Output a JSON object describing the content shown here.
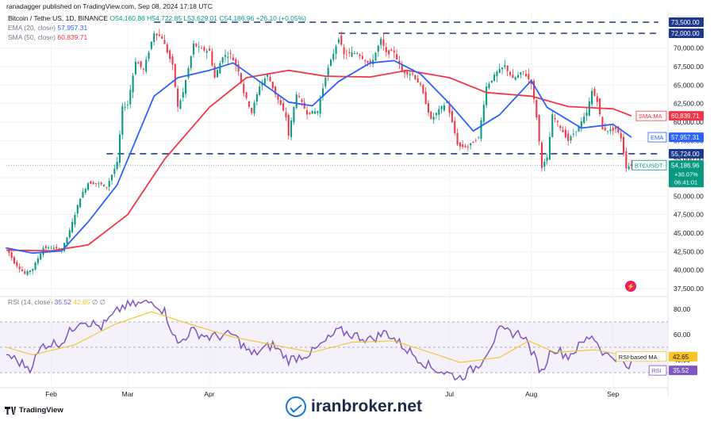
{
  "header": {
    "published": "ranadagger published on TradingView.com, Sep 08, 2024 17:18 UTC"
  },
  "legend": {
    "symbol": "Bitcoin / TetherUS, 1D, BINANCE",
    "ohlc": "O54,160.86 H54,722.85 L53,629.01 C54,186.96 +26.10 (+0.05%)",
    "ema_label": "EMA (20, close)",
    "ema_value": "57,957.31",
    "sma_label": "SMA (50, close)",
    "sma_value": "60,839.71",
    "rsi_label": "RSI (14, close)",
    "rsi_value": "35.52",
    "rsi_ma_value": "42.65",
    "rsi_extra": "∅ ∅"
  },
  "currency_label": "USDT",
  "branding": {
    "tv_logo": "TradingView",
    "watermark": "iranbroker.net"
  },
  "colors": {
    "up": "#089981",
    "down": "#f23645",
    "ema": "#2962ff",
    "sma": "#f23645",
    "rsi": "#7e57c2",
    "rsi_ma": "#f7c325",
    "level": "#1e3a8a",
    "bg_band": "#ede7f6"
  },
  "chart_data": [
    {
      "type": "candlestick",
      "x_range": [
        "2024-01-15",
        "2024-09-08"
      ],
      "ylim": [
        37500,
        73500
      ],
      "y_ticks": [
        "37,500.00",
        "40,000.00",
        "42,500.00",
        "45,000.00",
        "47,500.00",
        "50,000.00",
        "52,500.00",
        "55,000.00",
        "57,500.00",
        "60,000.00",
        "62,500.00",
        "65,000.00",
        "67,500.00",
        "70,000.00"
      ],
      "x_ticks": [
        {
          "label": "Feb",
          "date": "2024-02-01"
        },
        {
          "label": "Mar",
          "date": "2024-03-01"
        },
        {
          "label": "Apr",
          "date": "2024-04-01"
        },
        {
          "label": "Jul",
          "date": "2024-07-01"
        },
        {
          "label": "Aug",
          "date": "2024-08-01"
        },
        {
          "label": "Sep",
          "date": "2024-09-01"
        }
      ],
      "close_path": [
        [
          "2024-01-15",
          43000
        ],
        [
          "2024-01-18",
          41000
        ],
        [
          "2024-01-22",
          39500
        ],
        [
          "2024-01-25",
          40200
        ],
        [
          "2024-01-29",
          43000
        ],
        [
          "2024-02-01",
          43000
        ],
        [
          "2024-02-05",
          42700
        ],
        [
          "2024-02-08",
          45300
        ],
        [
          "2024-02-12",
          49800
        ],
        [
          "2024-02-15",
          51800
        ],
        [
          "2024-02-19",
          51700
        ],
        [
          "2024-02-22",
          51300
        ],
        [
          "2024-02-26",
          54500
        ],
        [
          "2024-02-28",
          62000
        ],
        [
          "2024-03-01",
          62400
        ],
        [
          "2024-03-04",
          68300
        ],
        [
          "2024-03-07",
          67000
        ],
        [
          "2024-03-11",
          72100
        ],
        [
          "2024-03-14",
          71400
        ],
        [
          "2024-03-18",
          67600
        ],
        [
          "2024-03-20",
          62000
        ],
        [
          "2024-03-22",
          64000
        ],
        [
          "2024-03-26",
          70500
        ],
        [
          "2024-03-29",
          69800
        ],
        [
          "2024-04-01",
          69600
        ],
        [
          "2024-04-03",
          66000
        ],
        [
          "2024-04-06",
          68900
        ],
        [
          "2024-04-09",
          69100
        ],
        [
          "2024-04-12",
          67000
        ],
        [
          "2024-04-14",
          64000
        ],
        [
          "2024-04-17",
          61300
        ],
        [
          "2024-04-20",
          64900
        ],
        [
          "2024-04-23",
          66400
        ],
        [
          "2024-04-26",
          63800
        ],
        [
          "2024-04-30",
          60700
        ],
        [
          "2024-05-01",
          58200
        ],
        [
          "2024-05-04",
          63900
        ],
        [
          "2024-05-08",
          61200
        ],
        [
          "2024-05-12",
          61500
        ],
        [
          "2024-05-15",
          66200
        ],
        [
          "2024-05-20",
          71400
        ],
        [
          "2024-05-22",
          69100
        ],
        [
          "2024-05-27",
          69400
        ],
        [
          "2024-06-01",
          67700
        ],
        [
          "2024-06-05",
          71100
        ],
        [
          "2024-06-07",
          69300
        ],
        [
          "2024-06-10",
          69500
        ],
        [
          "2024-06-13",
          66800
        ],
        [
          "2024-06-17",
          66500
        ],
        [
          "2024-06-20",
          64900
        ],
        [
          "2024-06-24",
          60300
        ],
        [
          "2024-06-27",
          61600
        ],
        [
          "2024-06-30",
          62700
        ],
        [
          "2024-07-04",
          57100
        ],
        [
          "2024-07-05",
          56700
        ],
        [
          "2024-07-08",
          56700
        ],
        [
          "2024-07-12",
          57900
        ],
        [
          "2024-07-15",
          64800
        ],
        [
          "2024-07-19",
          66700
        ],
        [
          "2024-07-22",
          67600
        ],
        [
          "2024-07-25",
          65800
        ],
        [
          "2024-07-29",
          66800
        ],
        [
          "2024-08-01",
          65300
        ],
        [
          "2024-08-03",
          60700
        ],
        [
          "2024-08-05",
          54000
        ],
        [
          "2024-08-07",
          55100
        ],
        [
          "2024-08-09",
          60900
        ],
        [
          "2024-08-12",
          59300
        ],
        [
          "2024-08-15",
          57500
        ],
        [
          "2024-08-19",
          59400
        ],
        [
          "2024-08-22",
          61200
        ],
        [
          "2024-08-24",
          64200
        ],
        [
          "2024-08-26",
          62900
        ],
        [
          "2024-08-28",
          59000
        ],
        [
          "2024-08-31",
          58900
        ],
        [
          "2024-09-02",
          59100
        ],
        [
          "2024-09-04",
          57900
        ],
        [
          "2024-09-06",
          53900
        ],
        [
          "2024-09-08",
          54187
        ]
      ],
      "ema20_path": [
        [
          "2024-01-15",
          43000
        ],
        [
          "2024-01-25",
          42300
        ],
        [
          "2024-02-05",
          42600
        ],
        [
          "2024-02-15",
          46500
        ],
        [
          "2024-02-26",
          51500
        ],
        [
          "2024-03-04",
          57500
        ],
        [
          "2024-03-11",
          63500
        ],
        [
          "2024-03-20",
          66000
        ],
        [
          "2024-04-01",
          67000
        ],
        [
          "2024-04-10",
          68000
        ],
        [
          "2024-04-20",
          65500
        ],
        [
          "2024-05-01",
          62700
        ],
        [
          "2024-05-10",
          62200
        ],
        [
          "2024-05-20",
          65500
        ],
        [
          "2024-06-01",
          68000
        ],
        [
          "2024-06-10",
          68300
        ],
        [
          "2024-06-20",
          66500
        ],
        [
          "2024-07-01",
          62500
        ],
        [
          "2024-07-10",
          58800
        ],
        [
          "2024-07-20",
          61000
        ],
        [
          "2024-08-01",
          65600
        ],
        [
          "2024-08-07",
          62000
        ],
        [
          "2024-08-20",
          59200
        ],
        [
          "2024-09-01",
          59700
        ],
        [
          "2024-09-08",
          57957
        ]
      ],
      "sma50_path": [
        [
          "2024-01-15",
          42700
        ],
        [
          "2024-02-01",
          42600
        ],
        [
          "2024-02-15",
          43400
        ],
        [
          "2024-03-01",
          47500
        ],
        [
          "2024-03-15",
          55000
        ],
        [
          "2024-04-01",
          62000
        ],
        [
          "2024-04-15",
          66000
        ],
        [
          "2024-05-01",
          67000
        ],
        [
          "2024-05-15",
          66200
        ],
        [
          "2024-06-01",
          66100
        ],
        [
          "2024-06-15",
          67000
        ],
        [
          "2024-07-01",
          66000
        ],
        [
          "2024-07-15",
          64000
        ],
        [
          "2024-08-01",
          63500
        ],
        [
          "2024-08-15",
          62100
        ],
        [
          "2024-09-01",
          61800
        ],
        [
          "2024-09-08",
          60840
        ]
      ],
      "horizontal_levels": [
        {
          "value": 73500,
          "label": "73,500.00"
        },
        {
          "value": 72000,
          "label": "72,000.00"
        },
        {
          "value": 55724,
          "label": "55,724.00"
        }
      ],
      "price_tags": [
        {
          "name": "SMA:MA",
          "value": "60,839.71",
          "color": "#f23645"
        },
        {
          "name": "EMA",
          "value": "57,957.31",
          "color": "#2962ff"
        },
        {
          "name": "BTCUSDT",
          "value": "54,186.96",
          "extra": [
            "+30.07%",
            "06:41:01"
          ],
          "color": "#089981"
        }
      ]
    },
    {
      "type": "line",
      "name": "RSI",
      "ylim": [
        20,
        85
      ],
      "y_ticks": [
        "40.00",
        "60.00",
        "80.00"
      ],
      "band": [
        30,
        70
      ],
      "rsi_path": [
        [
          "2024-01-15",
          45
        ],
        [
          "2024-01-20",
          38
        ],
        [
          "2024-01-24",
          34
        ],
        [
          "2024-01-29",
          52
        ],
        [
          "2024-02-05",
          54
        ],
        [
          "2024-02-12",
          72
        ],
        [
          "2024-02-20",
          66
        ],
        [
          "2024-02-28",
          82
        ],
        [
          "2024-03-05",
          84
        ],
        [
          "2024-03-11",
          86
        ],
        [
          "2024-03-15",
          78
        ],
        [
          "2024-03-20",
          52
        ],
        [
          "2024-03-25",
          63
        ],
        [
          "2024-04-01",
          58
        ],
        [
          "2024-04-10",
          60
        ],
        [
          "2024-04-17",
          44
        ],
        [
          "2024-04-25",
          52
        ],
        [
          "2024-05-01",
          40
        ],
        [
          "2024-05-10",
          46
        ],
        [
          "2024-05-20",
          63
        ],
        [
          "2024-06-01",
          56
        ],
        [
          "2024-06-07",
          62
        ],
        [
          "2024-06-15",
          48
        ],
        [
          "2024-06-24",
          34
        ],
        [
          "2024-07-05",
          26
        ],
        [
          "2024-07-12",
          36
        ],
        [
          "2024-07-20",
          63
        ],
        [
          "2024-07-29",
          60
        ],
        [
          "2024-08-05",
          30
        ],
        [
          "2024-08-09",
          50
        ],
        [
          "2024-08-15",
          43
        ],
        [
          "2024-08-24",
          60
        ],
        [
          "2024-08-29",
          44
        ],
        [
          "2024-09-04",
          42
        ],
        [
          "2024-09-06",
          33
        ],
        [
          "2024-09-08",
          35.5
        ]
      ],
      "rsi_ma_path": [
        [
          "2024-01-15",
          50
        ],
        [
          "2024-01-25",
          44
        ],
        [
          "2024-02-10",
          52
        ],
        [
          "2024-02-25",
          68
        ],
        [
          "2024-03-10",
          78
        ],
        [
          "2024-03-25",
          68
        ],
        [
          "2024-04-10",
          58
        ],
        [
          "2024-04-25",
          52
        ],
        [
          "2024-05-10",
          46
        ],
        [
          "2024-05-25",
          54
        ],
        [
          "2024-06-10",
          55
        ],
        [
          "2024-06-25",
          45
        ],
        [
          "2024-07-05",
          38
        ],
        [
          "2024-07-20",
          42
        ],
        [
          "2024-07-31",
          55
        ],
        [
          "2024-08-10",
          46
        ],
        [
          "2024-08-25",
          48
        ],
        [
          "2024-09-08",
          42.65
        ]
      ],
      "tags": [
        {
          "name": "RSI-based MA",
          "value": "42.65",
          "color": "#f7c325"
        },
        {
          "name": "RSI",
          "value": "35.52",
          "color": "#7e57c2"
        }
      ]
    }
  ]
}
